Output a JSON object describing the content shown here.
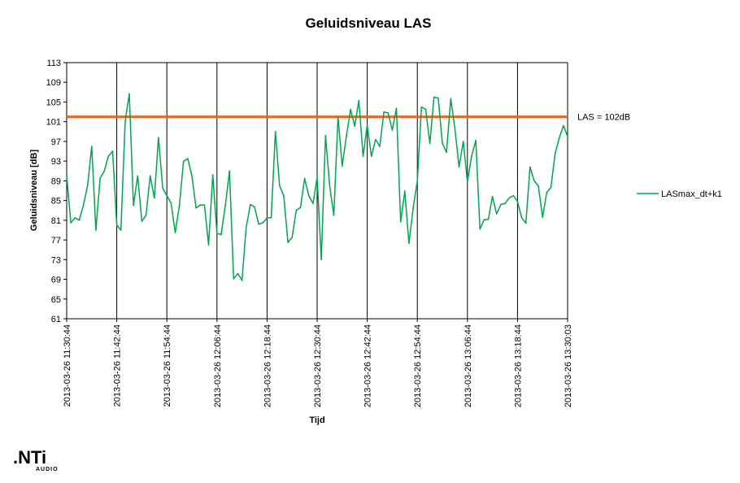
{
  "chart_data": {
    "type": "line",
    "title": "Geluidsniveau LAS",
    "xlabel": "Tijd",
    "ylabel": "Geluidsniveau [dB]",
    "ylim": [
      61,
      113
    ],
    "y_ticks": [
      61,
      65,
      69,
      73,
      77,
      81,
      85,
      89,
      93,
      97,
      101,
      105,
      109,
      113
    ],
    "x_ticks": [
      "2013-03-26 11:30:44",
      "2013-03-26 11:42:44",
      "2013-03-26 11:54:44",
      "2013-03-26 12:06:44",
      "2013-03-26 12:18:44",
      "2013-03-26 12:30:44",
      "2013-03-26 12:42:44",
      "2013-03-26 12:54:44",
      "2013-03-26 13:06:44",
      "2013-03-26 13:18:44",
      "2013-03-26 13:30:03"
    ],
    "grid": "vertical",
    "legend_position": "right",
    "series": [
      {
        "name": "LASmax_dt+k1",
        "color": "#00a64f",
        "values": [
          90,
          80.5,
          81.5,
          81,
          84,
          88,
          96,
          79,
          89.5,
          91,
          94,
          95,
          80,
          79,
          101,
          106.7,
          84,
          90,
          80.8,
          82,
          90,
          85.5,
          97.8,
          87.5,
          86,
          84.5,
          78.5,
          84,
          93,
          93.5,
          90,
          83.5,
          84.1,
          84.1,
          76,
          90.2,
          78.3,
          78.1,
          84,
          91,
          69.1,
          70.2,
          68.8,
          79.5,
          84.2,
          83.7,
          80.2,
          80.5,
          81.5,
          81.5,
          99,
          88,
          86,
          76.5,
          77.5,
          83,
          83.6,
          89.5,
          86,
          84.4,
          89.7,
          73,
          98.2,
          88,
          82,
          102,
          92,
          98,
          103.5,
          100.1,
          105.3,
          94,
          100.3,
          94,
          97.4,
          96,
          103,
          102.8,
          99.3,
          103.7,
          80.7,
          86.9,
          76.3,
          83.5,
          89,
          104,
          103.5,
          96.6,
          106,
          105.8,
          96.6,
          94.8,
          105.7,
          99.6,
          91.8,
          97,
          88.8,
          94,
          97.2,
          79.2,
          81.1,
          81.2,
          85.8,
          82.3,
          84.2,
          84.4,
          85.5,
          86,
          84.8,
          81.5,
          80.4,
          91.8,
          89,
          87.9,
          81.6,
          86.6,
          87.7,
          94.5,
          97.7,
          100.2,
          98
        ]
      }
    ],
    "reference_line": {
      "value": 102,
      "label": "LAS = 102dB",
      "color": "#f0641e"
    }
  },
  "logo": {
    "main": ".NTi",
    "sub": "AUDIO"
  }
}
